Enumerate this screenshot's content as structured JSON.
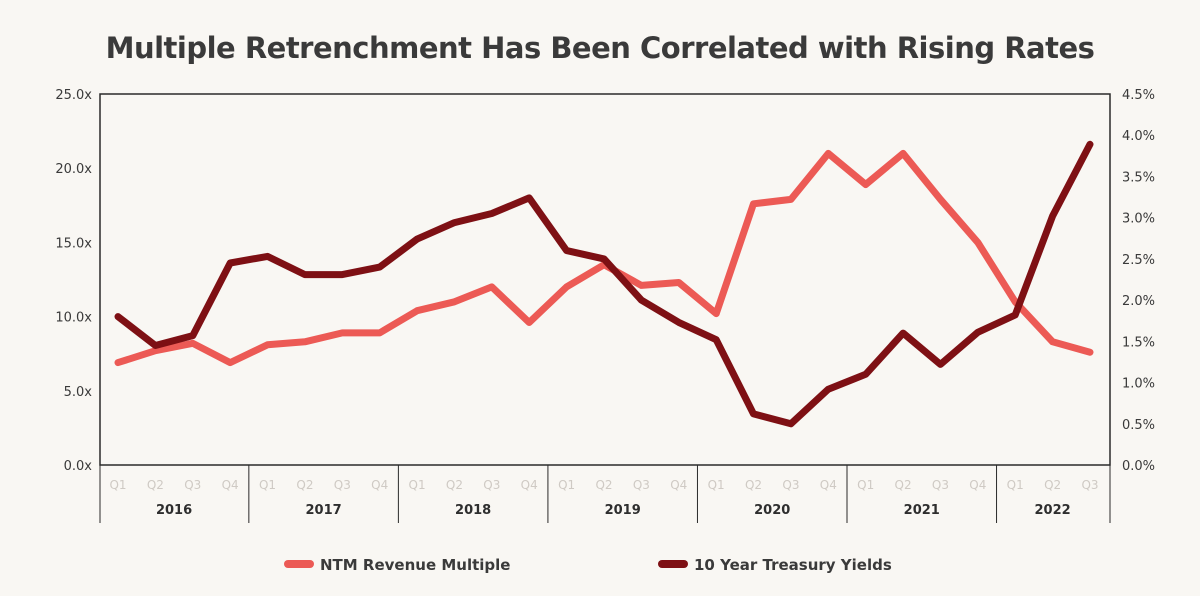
{
  "chart_data": {
    "type": "line",
    "title": "Multiple Retrenchment Has Been Correlated with Rising Rates",
    "categories": [
      "Q1",
      "Q2",
      "Q3",
      "Q4",
      "Q1",
      "Q2",
      "Q3",
      "Q4",
      "Q1",
      "Q2",
      "Q3",
      "Q4",
      "Q1",
      "Q2",
      "Q3",
      "Q4",
      "Q1",
      "Q2",
      "Q3",
      "Q4",
      "Q1",
      "Q2",
      "Q3",
      "Q4",
      "Q1",
      "Q2",
      "Q3"
    ],
    "years": [
      "2016",
      "2017",
      "2018",
      "2019",
      "2020",
      "2021",
      "2022"
    ],
    "left_axis": {
      "ylim": [
        0,
        25
      ],
      "ticks": [
        "0.0x",
        "5.0x",
        "10.0x",
        "15.0x",
        "20.0x",
        "25.0x"
      ]
    },
    "right_axis": {
      "ylim": [
        0,
        4.5
      ],
      "ticks": [
        "0.0%",
        "0.5%",
        "1.0%",
        "1.5%",
        "2.0%",
        "2.5%",
        "3.0%",
        "3.5%",
        "4.0%",
        "4.5%"
      ]
    },
    "series": [
      {
        "name": "NTM Revenue Multiple",
        "axis": "left",
        "color": "#ec5a55",
        "values": [
          6.9,
          7.7,
          8.2,
          6.9,
          8.1,
          8.3,
          8.9,
          8.9,
          10.4,
          11.0,
          12.0,
          9.6,
          12.0,
          13.5,
          12.1,
          12.3,
          10.2,
          17.6,
          17.9,
          21.0,
          18.9,
          21.0,
          17.9,
          15.0,
          11.0,
          8.3,
          7.6
        ]
      },
      {
        "name": "10 Year Treasury Yields",
        "axis": "right",
        "color": "#7e1014",
        "values": [
          1.8,
          1.45,
          1.57,
          2.45,
          2.53,
          2.31,
          2.31,
          2.4,
          2.74,
          2.94,
          3.05,
          3.24,
          2.6,
          2.5,
          2.0,
          1.73,
          1.52,
          0.62,
          0.5,
          0.92,
          1.1,
          1.6,
          1.22,
          1.61,
          1.82,
          3.02,
          3.89
        ]
      }
    ],
    "grid": false,
    "legend": "bottom-center"
  }
}
